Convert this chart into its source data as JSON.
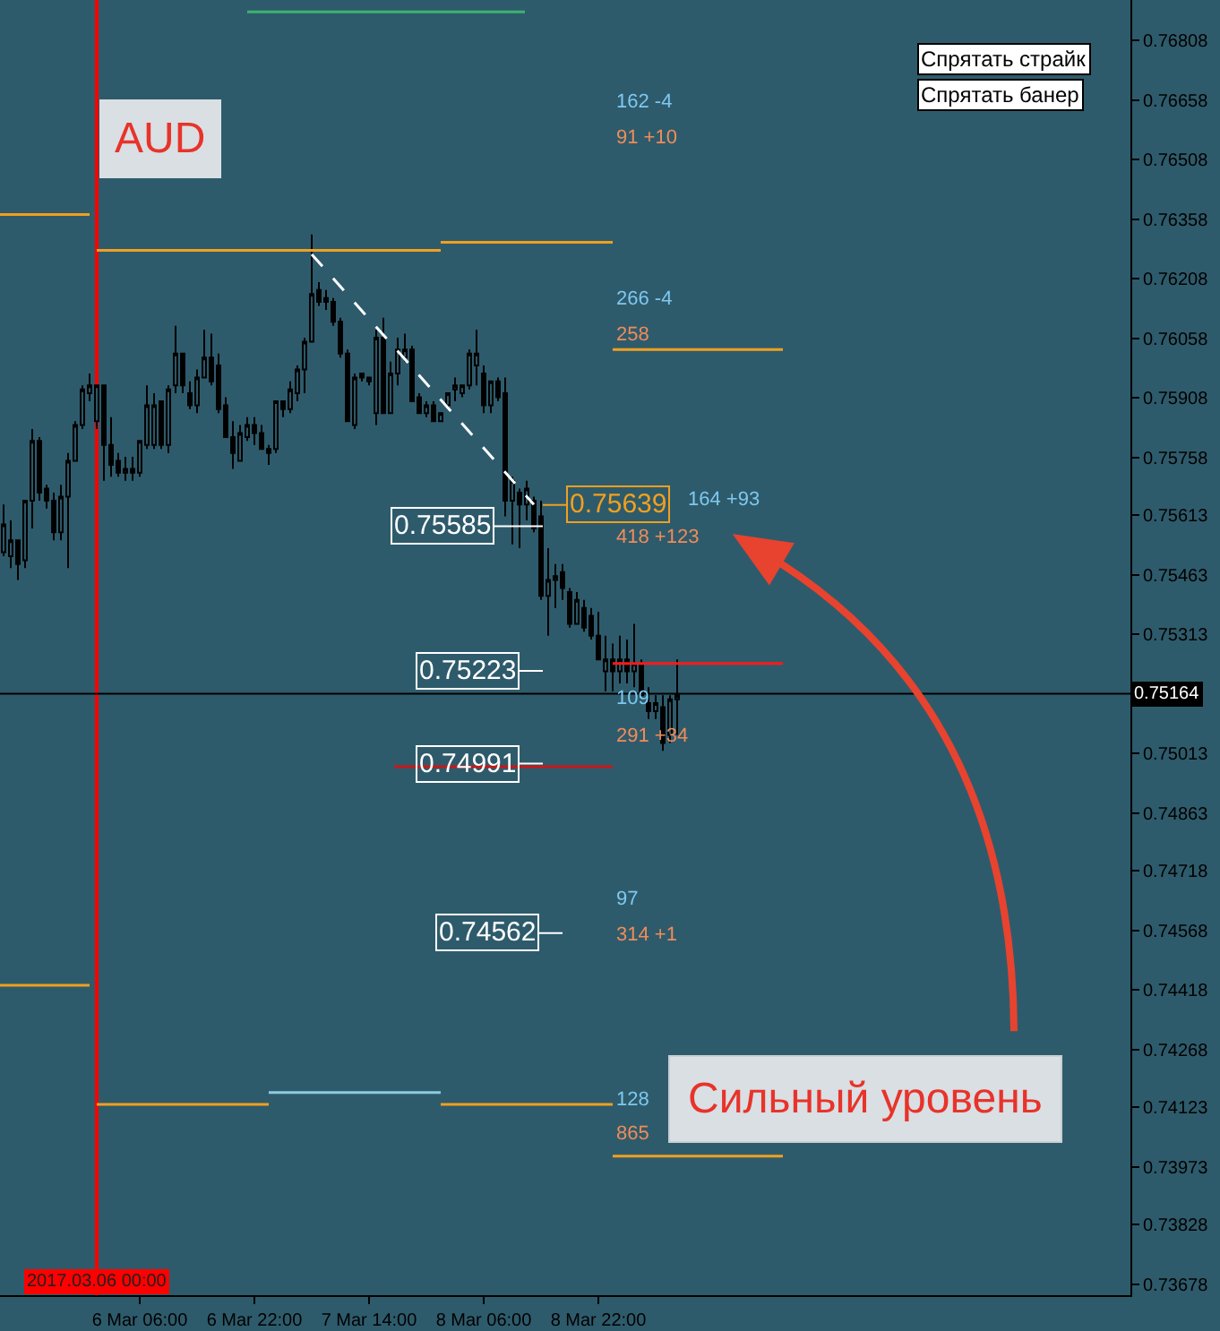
{
  "chart_data": {
    "type": "candlestick",
    "title": "AUD",
    "x": [
      "2017-03-05T11:00",
      "2017-03-05T12:00",
      "2017-03-05T13:00",
      "2017-03-05T14:00",
      "2017-03-05T15:00",
      "2017-03-05T16:00",
      "2017-03-05T17:00",
      "2017-03-05T18:00",
      "2017-03-05T19:00",
      "2017-03-05T20:00",
      "2017-03-05T21:00",
      "2017-03-05T22:00",
      "2017-03-05T23:00",
      "2017-03-06T00:00",
      "2017-03-06T01:00",
      "2017-03-06T02:00",
      "2017-03-06T03:00",
      "2017-03-06T04:00",
      "2017-03-06T05:00",
      "2017-03-06T06:00",
      "2017-03-06T07:00",
      "2017-03-06T08:00",
      "2017-03-06T09:00",
      "2017-03-06T10:00",
      "2017-03-06T11:00",
      "2017-03-06T12:00",
      "2017-03-06T13:00",
      "2017-03-06T14:00",
      "2017-03-06T15:00",
      "2017-03-06T16:00",
      "2017-03-06T17:00",
      "2017-03-06T18:00",
      "2017-03-06T19:00",
      "2017-03-06T20:00",
      "2017-03-06T21:00",
      "2017-03-06T22:00",
      "2017-03-06T23:00",
      "2017-03-07T00:00",
      "2017-03-07T01:00",
      "2017-03-07T02:00",
      "2017-03-07T03:00",
      "2017-03-07T04:00",
      "2017-03-07T05:00",
      "2017-03-07T06:00",
      "2017-03-07T07:00",
      "2017-03-07T08:00",
      "2017-03-07T09:00",
      "2017-03-07T10:00",
      "2017-03-07T11:00",
      "2017-03-07T12:00",
      "2017-03-07T13:00",
      "2017-03-07T14:00",
      "2017-03-07T15:00",
      "2017-03-07T16:00",
      "2017-03-07T17:00",
      "2017-03-07T18:00",
      "2017-03-07T19:00",
      "2017-03-07T20:00",
      "2017-03-07T21:00",
      "2017-03-07T22:00",
      "2017-03-07T23:00",
      "2017-03-08T00:00",
      "2017-03-08T01:00",
      "2017-03-08T02:00",
      "2017-03-08T03:00",
      "2017-03-08T04:00",
      "2017-03-08T05:00",
      "2017-03-08T06:00",
      "2017-03-08T07:00",
      "2017-03-08T08:00",
      "2017-03-08T09:00",
      "2017-03-08T10:00",
      "2017-03-08T11:00",
      "2017-03-08T12:00",
      "2017-03-08T13:00",
      "2017-03-08T14:00",
      "2017-03-08T15:00",
      "2017-03-08T16:00",
      "2017-03-08T17:00",
      "2017-03-08T18:00",
      "2017-03-08T19:00",
      "2017-03-08T20:00",
      "2017-03-08T21:00",
      "2017-03-08T22:00",
      "2017-03-08T23:00",
      "2017-03-09T00:00",
      "2017-03-09T01:00",
      "2017-03-09T02:00",
      "2017-03-09T03:00",
      "2017-03-09T04:00",
      "2017-03-09T05:00",
      "2017-03-09T06:00",
      "2017-03-09T07:00",
      "2017-03-09T08:00",
      "2017-03-09T09:00"
    ],
    "ohlc": [
      [
        0.7552,
        0.7564,
        0.7551,
        0.7559
      ],
      [
        0.7551,
        0.756,
        0.7548,
        0.7555
      ],
      [
        0.7555,
        0.7555,
        0.7545,
        0.7549
      ],
      [
        0.755,
        0.7565,
        0.7548,
        0.7565
      ],
      [
        0.7565,
        0.7583,
        0.7558,
        0.758
      ],
      [
        0.758,
        0.7581,
        0.7565,
        0.7567
      ],
      [
        0.7568,
        0.7569,
        0.7563,
        0.7565
      ],
      [
        0.7565,
        0.7567,
        0.7555,
        0.7557
      ],
      [
        0.7557,
        0.7569,
        0.7555,
        0.7566
      ],
      [
        0.7566,
        0.7577,
        0.7548,
        0.7575
      ],
      [
        0.7575,
        0.7585,
        0.7575,
        0.7584
      ],
      [
        0.7584,
        0.7594,
        0.7583,
        0.7593
      ],
      [
        0.7592,
        0.7597,
        0.759,
        0.7594
      ],
      [
        0.7585,
        0.7594,
        0.7583,
        0.7594
      ],
      [
        0.7594,
        0.7594,
        0.757,
        0.7579
      ],
      [
        0.7579,
        0.7586,
        0.7571,
        0.7574
      ],
      [
        0.7575,
        0.7577,
        0.7571,
        0.7572
      ],
      [
        0.7572,
        0.7576,
        0.757,
        0.7573
      ],
      [
        0.7573,
        0.7576,
        0.757,
        0.7572
      ],
      [
        0.7572,
        0.758,
        0.7571,
        0.758
      ],
      [
        0.7579,
        0.7594,
        0.7578,
        0.7589
      ],
      [
        0.7579,
        0.7592,
        0.7578,
        0.7589
      ],
      [
        0.759,
        0.759,
        0.7578,
        0.7579
      ],
      [
        0.7579,
        0.7594,
        0.7577,
        0.7593
      ],
      [
        0.7594,
        0.7609,
        0.7592,
        0.7602
      ],
      [
        0.7602,
        0.7602,
        0.7592,
        0.7594
      ],
      [
        0.7592,
        0.7595,
        0.7588,
        0.7589
      ],
      [
        0.7589,
        0.7598,
        0.7587,
        0.7596
      ],
      [
        0.7596,
        0.7608,
        0.7596,
        0.7601
      ],
      [
        0.7601,
        0.7607,
        0.7594,
        0.7595
      ],
      [
        0.7599,
        0.7602,
        0.7587,
        0.7588
      ],
      [
        0.7589,
        0.7591,
        0.7581,
        0.7581
      ],
      [
        0.7581,
        0.7585,
        0.7573,
        0.7577
      ],
      [
        0.7575,
        0.7584,
        0.7575,
        0.7582
      ],
      [
        0.7581,
        0.7586,
        0.758,
        0.7584
      ],
      [
        0.7584,
        0.7586,
        0.7579,
        0.7582
      ],
      [
        0.7582,
        0.7584,
        0.7578,
        0.7578
      ],
      [
        0.7578,
        0.7579,
        0.7574,
        0.7577
      ],
      [
        0.7578,
        0.759,
        0.7577,
        0.759
      ],
      [
        0.759,
        0.759,
        0.7586,
        0.7588
      ],
      [
        0.7588,
        0.7595,
        0.7587,
        0.7593
      ],
      [
        0.7592,
        0.7599,
        0.759,
        0.7598
      ],
      [
        0.7598,
        0.7606,
        0.7592,
        0.7605
      ],
      [
        0.7605,
        0.7632,
        0.7605,
        0.7617
      ],
      [
        0.7618,
        0.762,
        0.7614,
        0.7615
      ],
      [
        0.7616,
        0.7618,
        0.7613,
        0.7615
      ],
      [
        0.7615,
        0.7616,
        0.7609,
        0.761
      ],
      [
        0.761,
        0.7611,
        0.7601,
        0.7602
      ],
      [
        0.7602,
        0.7603,
        0.7585,
        0.7585
      ],
      [
        0.7584,
        0.7597,
        0.7583,
        0.7596
      ],
      [
        0.7597,
        0.7597,
        0.7595,
        0.7596
      ],
      [
        0.7595,
        0.7596,
        0.7594,
        0.7596
      ],
      [
        0.7587,
        0.7608,
        0.7584,
        0.7606
      ],
      [
        0.7606,
        0.7611,
        0.7587,
        0.7587
      ],
      [
        0.7587,
        0.76,
        0.7587,
        0.7597
      ],
      [
        0.7597,
        0.7606,
        0.7594,
        0.7603
      ],
      [
        0.7601,
        0.7607,
        0.76,
        0.7603
      ],
      [
        0.7603,
        0.7604,
        0.759,
        0.759
      ],
      [
        0.7591,
        0.7592,
        0.7587,
        0.7587
      ],
      [
        0.7587,
        0.759,
        0.7586,
        0.7589
      ],
      [
        0.7589,
        0.759,
        0.7585,
        0.7585
      ],
      [
        0.7585,
        0.7587,
        0.7585,
        0.7587
      ],
      [
        0.7589,
        0.7592,
        0.7588,
        0.7592
      ],
      [
        0.7593,
        0.7596,
        0.759,
        0.7594
      ],
      [
        0.7592,
        0.7594,
        0.7591,
        0.7594
      ],
      [
        0.7594,
        0.7603,
        0.7593,
        0.7602
      ],
      [
        0.7599,
        0.7608,
        0.7594,
        0.7602
      ],
      [
        0.7597,
        0.7599,
        0.7587,
        0.7589
      ],
      [
        0.7589,
        0.7595,
        0.7587,
        0.7595
      ],
      [
        0.7595,
        0.7596,
        0.759,
        0.7591
      ],
      [
        0.7592,
        0.7596,
        0.7561,
        0.7565
      ],
      [
        0.7565,
        0.7571,
        0.7554,
        0.757
      ],
      [
        0.7567,
        0.7568,
        0.7553,
        0.7564
      ],
      [
        0.7564,
        0.757,
        0.756,
        0.7568
      ],
      [
        0.7565,
        0.7566,
        0.7557,
        0.7558
      ],
      [
        0.7561,
        0.7565,
        0.754,
        0.7541
      ],
      [
        0.7541,
        0.7553,
        0.7531,
        0.7545
      ],
      [
        0.7545,
        0.7549,
        0.7538,
        0.7546
      ],
      [
        0.7547,
        0.7549,
        0.754,
        0.7543
      ],
      [
        0.7542,
        0.7543,
        0.7533,
        0.7534
      ],
      [
        0.7534,
        0.7542,
        0.7534,
        0.754
      ],
      [
        0.7538,
        0.754,
        0.7532,
        0.7533
      ],
      [
        0.7536,
        0.7538,
        0.753,
        0.7531
      ],
      [
        0.7531,
        0.7537,
        0.7525,
        0.7525
      ],
      [
        0.7522,
        0.7531,
        0.7517,
        0.7525
      ],
      [
        0.7525,
        0.7529,
        0.7517,
        0.7522
      ],
      [
        0.7522,
        0.7531,
        0.7519,
        0.7525
      ],
      [
        0.7525,
        0.753,
        0.7519,
        0.7522
      ],
      [
        0.7522,
        0.7534,
        0.7518,
        0.7524
      ],
      [
        0.7524,
        0.7525,
        0.7516,
        0.7516
      ],
      [
        0.7514,
        0.7518,
        0.751,
        0.7512
      ],
      [
        0.7512,
        0.7516,
        0.751,
        0.7514
      ],
      [
        0.7513,
        0.7516,
        0.7502,
        0.7504
      ],
      [
        0.7506,
        0.7516,
        0.7504,
        0.7515
      ],
      [
        0.7515,
        0.7525,
        0.7506,
        0.7516
      ]
    ],
    "series": [
      {
        "type": "line",
        "color": "#f0a020",
        "x": [
          "2017-03-05T10:30",
          "2017-03-05T23:00"
        ],
        "values": [
          0.7637,
          0.7637
        ]
      },
      {
        "type": "line",
        "color": "#f0a020",
        "x": [
          "2017-03-06T00:00",
          "2017-03-08T00:00"
        ],
        "values": [
          0.7628,
          0.7628
        ]
      },
      {
        "type": "line",
        "color": "#f0a020",
        "x": [
          "2017-03-08T00:00",
          "2017-03-09T00:00"
        ],
        "values": [
          0.763,
          0.763
        ]
      },
      {
        "type": "line",
        "color": "#f0a020",
        "x": [
          "2017-03-09T00:00",
          "2017-03-09T23:45"
        ],
        "values": [
          0.7603,
          0.7603
        ]
      },
      {
        "type": "line",
        "color": "#f0a020",
        "x": [
          "2017-03-05T10:30",
          "2017-03-05T23:00"
        ],
        "values": [
          0.7443,
          0.7443
        ]
      },
      {
        "type": "line",
        "color": "#f0a020",
        "x": [
          "2017-03-06T00:00",
          "2017-03-07T00:00"
        ],
        "values": [
          0.7413,
          0.7413
        ]
      },
      {
        "type": "line",
        "color": "#8ccbe0",
        "x": [
          "2017-03-07T00:00",
          "2017-03-08T00:00"
        ],
        "values": [
          0.7416,
          0.7416
        ]
      },
      {
        "type": "line",
        "color": "#f0a020",
        "x": [
          "2017-03-08T00:00",
          "2017-03-09T00:00"
        ],
        "values": [
          0.7413,
          0.7413
        ]
      },
      {
        "type": "line",
        "color": "#f0a020",
        "x": [
          "2017-03-09T00:00",
          "2017-03-09T23:45"
        ],
        "values": [
          0.74,
          0.74
        ]
      },
      {
        "type": "line",
        "color": "#ff1a1a",
        "x": [
          "2017-03-09T00:00",
          "2017-03-09T23:45"
        ],
        "values": [
          0.7524,
          0.7524
        ]
      },
      {
        "type": "line",
        "color": "#c81818",
        "x": [
          "2017-03-07T17:30",
          "2017-03-09T00:00"
        ],
        "values": [
          0.7498,
          0.7498
        ]
      },
      {
        "type": "line",
        "color": "#3cb371",
        "x": [
          "2017-03-06T21:00",
          "2017-03-08T11:45"
        ],
        "values": [
          0.7688,
          0.7688
        ]
      },
      {
        "type": "line",
        "color": "#ffffff",
        "line_style": "dashed",
        "x": [
          "2017-03-07T06:00",
          "2017-03-08T13:00"
        ],
        "values": [
          0.7627,
          0.7564
        ]
      }
    ],
    "xlim": [
      "2017-03-05T10:30",
      "2017-03-12T00:15"
    ],
    "xticks": [
      {
        "value": "2017-03-06T06:00",
        "label": "6 Mar 06:00"
      },
      {
        "value": "2017-03-06T22:00",
        "label": "6 Mar 22:00"
      },
      {
        "value": "2017-03-07T14:00",
        "label": "7 Mar 14:00"
      },
      {
        "value": "2017-03-08T06:00",
        "label": "8 Mar 06:00"
      },
      {
        "value": "2017-03-08T22:00",
        "label": "8 Mar 22:00"
      }
    ],
    "ylim": [
      0.7365,
      0.7691
    ],
    "yticks": [
      0.73678,
      0.73828,
      0.73973,
      0.74123,
      0.74268,
      0.74418,
      0.74568,
      0.74718,
      0.74863,
      0.75013,
      0.75313,
      0.75463,
      0.75613,
      0.75758,
      0.75908,
      0.76058,
      0.76208,
      0.76358,
      0.76508,
      0.76658,
      0.76808
    ],
    "ref_lines": [
      {
        "axis": "y",
        "value": 0.75164,
        "label": "0.75164",
        "color": "#000000"
      },
      {
        "axis": "x",
        "value": "2017-03-06T00:00",
        "label": "2017.03.06 00:00",
        "color": "#ff0000"
      }
    ],
    "annotations": [
      "Спрятать страйк",
      "Спрятать банер",
      "0.75639",
      "0.75585",
      "0.75223",
      "0.74991",
      "0.74562",
      "Сильный уровень",
      "162 -4",
      "91 +10",
      "266 -4",
      "258",
      "164 +93",
      "418 +123",
      "109",
      "291 +34",
      "97",
      "314 +1",
      "128",
      "865"
    ]
  }
}
